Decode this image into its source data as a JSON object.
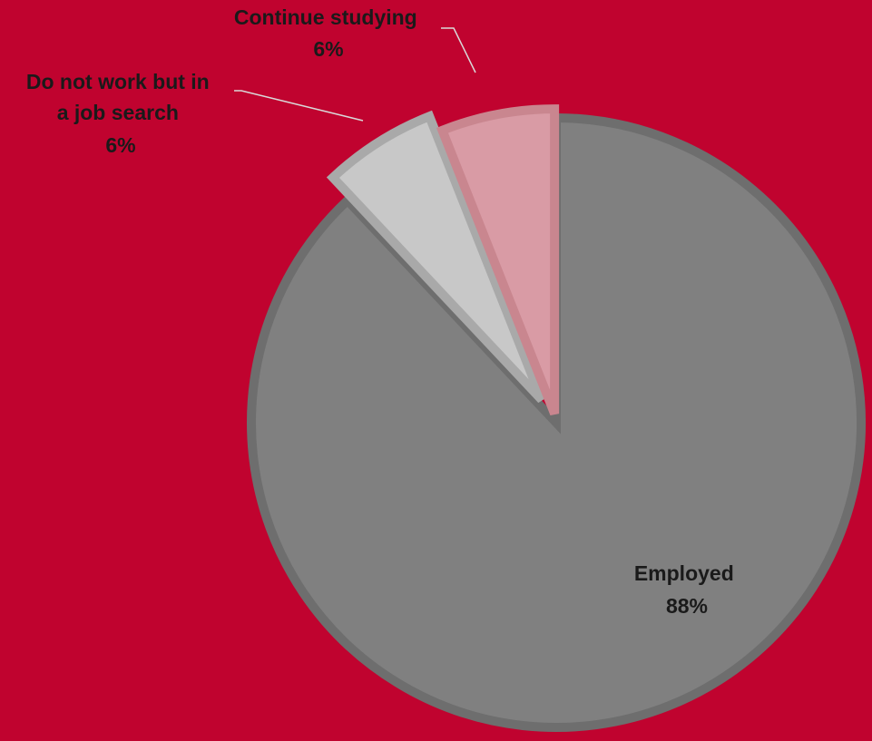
{
  "chart_data": {
    "type": "pie",
    "slices": [
      {
        "label": "Employed",
        "value": 88,
        "value_label": "88%",
        "color": "#808080",
        "border": "#6e6e6e"
      },
      {
        "label": "Do not work but in a job search",
        "value": 6,
        "value_label": "6%",
        "color": "#c8c8c8",
        "border": "#a9a9a9"
      },
      {
        "label": "Continue studying",
        "value": 6,
        "value_label": "6%",
        "color": "#d99ba5",
        "border": "#c9868f"
      }
    ],
    "background_color": "#c0032f"
  }
}
